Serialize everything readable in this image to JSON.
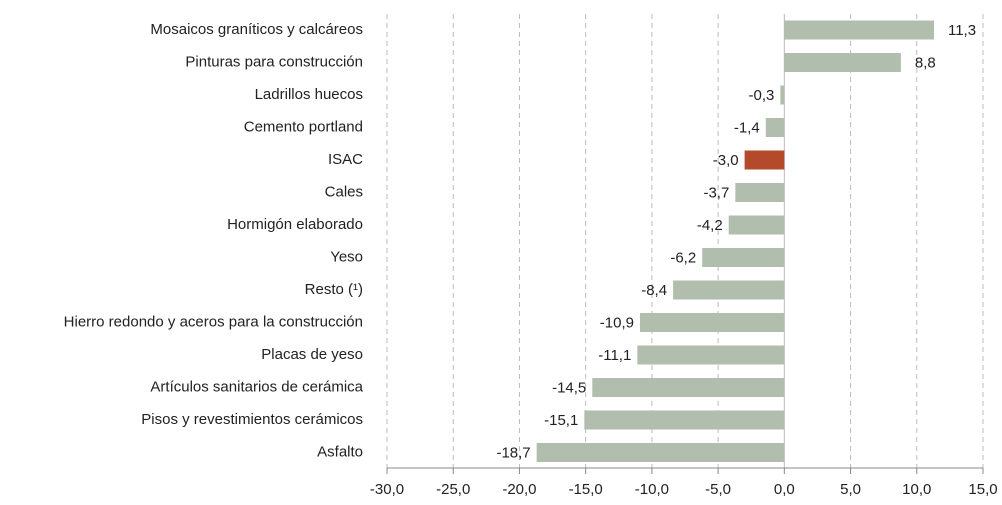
{
  "chart_data": {
    "type": "hbar",
    "categories": [
      "Mosaicos graníticos y calcáreos",
      "Pinturas para construcción",
      "Ladrillos huecos",
      "Cemento portland",
      "ISAC",
      "Cales",
      "Hormigón elaborado",
      "Yeso",
      "Resto (¹)",
      "Hierro redondo y aceros para la construcción",
      "Placas de yeso",
      "Artículos sanitarios de cerámica",
      "Pisos y revestimientos cerámicos",
      "Asfalto"
    ],
    "values": [
      11.3,
      8.8,
      -0.3,
      -1.4,
      -3.0,
      -3.7,
      -4.2,
      -6.2,
      -8.4,
      -10.9,
      -11.1,
      -14.5,
      -15.1,
      -18.7
    ],
    "value_labels": [
      "11,3",
      "8,8",
      "-0,3",
      "-1,4",
      "-3,0",
      "-3,7",
      "-4,2",
      "-6,2",
      "-8,4",
      "-10,9",
      "-11,1",
      "-14,5",
      "-15,1",
      "-18,7"
    ],
    "bar_colors": [
      "#b1bead",
      "#b1bead",
      "#b1bead",
      "#b1bead",
      "#b34a2b",
      "#b1bead",
      "#b1bead",
      "#b1bead",
      "#b1bead",
      "#b1bead",
      "#b1bead",
      "#b1bead",
      "#b1bead",
      "#b1bead"
    ],
    "xlim": [
      -30,
      15
    ],
    "xticks": [
      {
        "value": -30,
        "label": "-30,0"
      },
      {
        "value": -25,
        "label": "-25,0"
      },
      {
        "value": -20,
        "label": "-20,0"
      },
      {
        "value": -15,
        "label": "-15,0"
      },
      {
        "value": -10,
        "label": "-10,0"
      },
      {
        "value": -5,
        "label": "-5,0"
      },
      {
        "value": 0,
        "label": "0,0"
      },
      {
        "value": 5,
        "label": "5,0"
      },
      {
        "value": 10,
        "label": "10,0"
      },
      {
        "value": 15,
        "label": "15,0"
      }
    ],
    "grid": true
  }
}
